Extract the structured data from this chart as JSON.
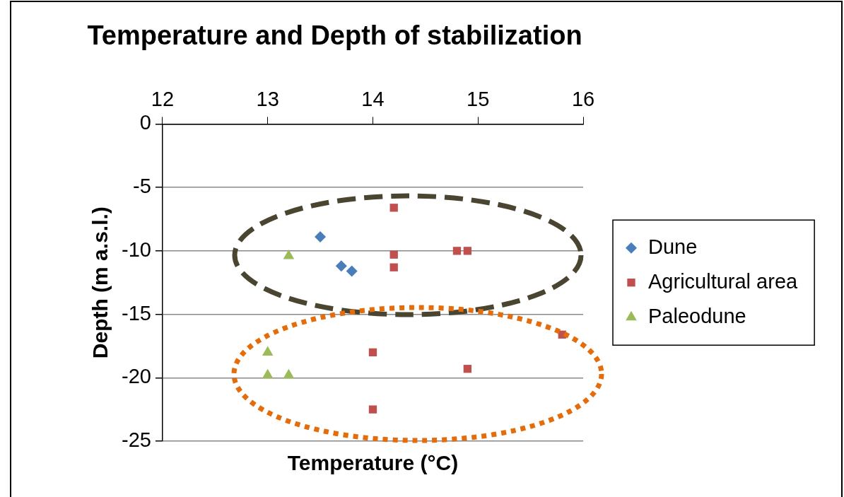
{
  "chart_data": {
    "type": "scatter",
    "title": "Temperature and Depth of stabilization",
    "xlabel": "Temperature (°C)",
    "ylabel": "Depth (m a.s.l.)",
    "xlim": [
      12,
      16
    ],
    "xticks": [
      12,
      13,
      14,
      15,
      16
    ],
    "ylim": [
      -25,
      0
    ],
    "yticks": [
      -25,
      -20,
      -15,
      -10,
      -5,
      0
    ],
    "grid": "y",
    "legend": "right",
    "series": [
      {
        "name": "Dune",
        "color": "#4a7ebb",
        "marker": "diamond",
        "x": [
          13.5,
          13.7,
          13.8
        ],
        "values": [
          -8.9,
          -11.2,
          -11.6
        ]
      },
      {
        "name": "Agricultural area",
        "color": "#c0504d",
        "marker": "square",
        "x": [
          14.2,
          14.2,
          14.2,
          14.8,
          14.9,
          15.8,
          14.0,
          14.9,
          14.0
        ],
        "values": [
          -6.6,
          -10.3,
          -11.3,
          -10.0,
          -10.0,
          -16.6,
          -18.0,
          -19.3,
          -22.5
        ]
      },
      {
        "name": "Paleodune",
        "color": "#9bbb59",
        "marker": "triangle",
        "x": [
          13.2,
          13.0,
          13.0,
          13.2
        ],
        "values": [
          -10.4,
          -18.0,
          -19.8,
          -19.8
        ]
      }
    ]
  }
}
